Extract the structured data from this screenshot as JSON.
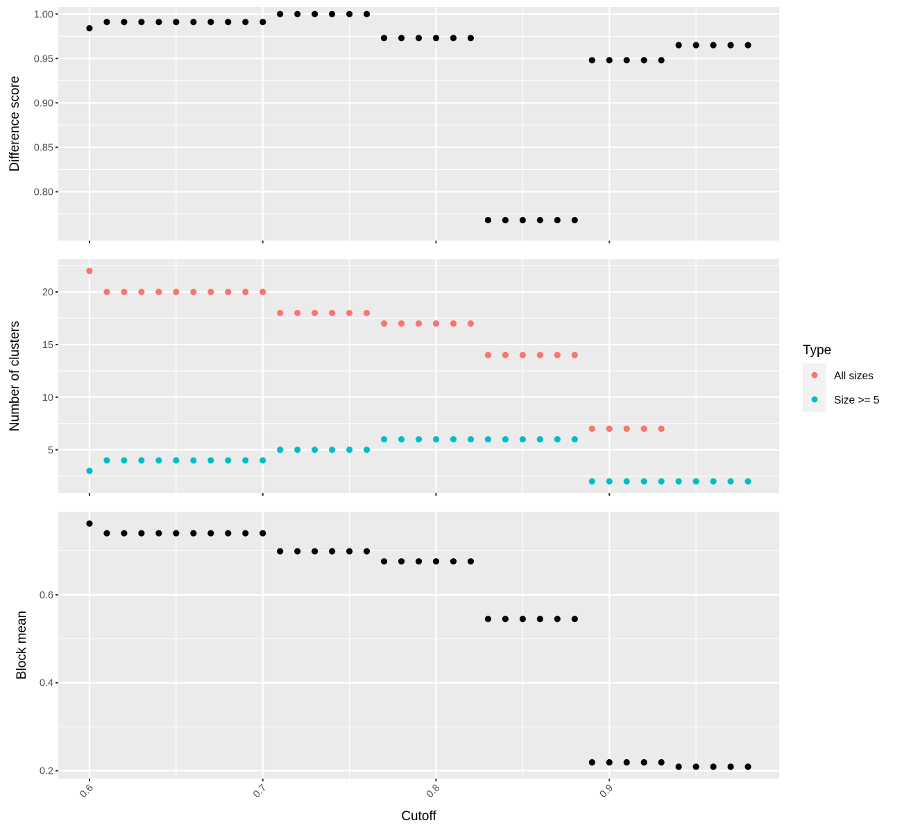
{
  "chart_data": [
    {
      "type": "scatter",
      "ylabel": "Difference score",
      "ylim": [
        0.745,
        1.008
      ],
      "yticks": [
        "0.80",
        "0.85",
        "0.90",
        "0.95",
        "1.00"
      ],
      "grid": true,
      "series": [
        {
          "color": "#000000",
          "x": [
            0.6,
            0.61,
            0.62,
            0.63,
            0.64,
            0.65,
            0.66,
            0.67,
            0.68,
            0.69,
            0.7,
            0.71,
            0.72,
            0.73,
            0.74,
            0.75,
            0.76,
            0.77,
            0.78,
            0.79,
            0.8,
            0.81,
            0.82,
            0.83,
            0.84,
            0.85,
            0.86,
            0.87,
            0.88,
            0.89,
            0.9,
            0.91,
            0.92,
            0.93,
            0.94,
            0.95,
            0.96,
            0.97,
            0.98
          ],
          "y": [
            0.984,
            0.991,
            0.991,
            0.991,
            0.991,
            0.991,
            0.991,
            0.991,
            0.991,
            0.991,
            0.991,
            1.0,
            1.0,
            1.0,
            1.0,
            1.0,
            1.0,
            0.973,
            0.973,
            0.973,
            0.973,
            0.973,
            0.973,
            0.768,
            0.768,
            0.768,
            0.768,
            0.768,
            0.768,
            0.948,
            0.948,
            0.948,
            0.948,
            0.948,
            0.965,
            0.965,
            0.965,
            0.965,
            0.965
          ]
        }
      ]
    },
    {
      "type": "scatter",
      "ylabel": "Number of clusters",
      "ylim": [
        0.9,
        23.1
      ],
      "yticks": [
        "5",
        "10",
        "15",
        "20"
      ],
      "grid": true,
      "legend": {
        "title": "Type",
        "position": "right"
      },
      "series": [
        {
          "name": "All sizes",
          "color": "#f8766d",
          "x": [
            0.6,
            0.61,
            0.62,
            0.63,
            0.64,
            0.65,
            0.66,
            0.67,
            0.68,
            0.69,
            0.7,
            0.71,
            0.72,
            0.73,
            0.74,
            0.75,
            0.76,
            0.77,
            0.78,
            0.79,
            0.8,
            0.81,
            0.82,
            0.83,
            0.84,
            0.85,
            0.86,
            0.87,
            0.88,
            0.89,
            0.9,
            0.91,
            0.92,
            0.93
          ],
          "y": [
            22,
            20,
            20,
            20,
            20,
            20,
            20,
            20,
            20,
            20,
            20,
            18,
            18,
            18,
            18,
            18,
            18,
            17,
            17,
            17,
            17,
            17,
            17,
            14,
            14,
            14,
            14,
            14,
            14,
            7,
            7,
            7,
            7,
            7
          ]
        },
        {
          "name": "Size >= 5",
          "color": "#00bfc4",
          "x": [
            0.6,
            0.61,
            0.62,
            0.63,
            0.64,
            0.65,
            0.66,
            0.67,
            0.68,
            0.69,
            0.7,
            0.71,
            0.72,
            0.73,
            0.74,
            0.75,
            0.76,
            0.77,
            0.78,
            0.79,
            0.8,
            0.81,
            0.82,
            0.83,
            0.84,
            0.85,
            0.86,
            0.87,
            0.88,
            0.89,
            0.9,
            0.91,
            0.92,
            0.93,
            0.94,
            0.95,
            0.96,
            0.97,
            0.98
          ],
          "y": [
            3,
            4,
            4,
            4,
            4,
            4,
            4,
            4,
            4,
            4,
            4,
            5,
            5,
            5,
            5,
            5,
            5,
            6,
            6,
            6,
            6,
            6,
            6,
            6,
            6,
            6,
            6,
            6,
            6,
            2,
            2,
            2,
            2,
            2,
            2,
            2,
            2,
            2,
            2
          ]
        }
      ]
    },
    {
      "type": "scatter",
      "ylabel": "Block mean",
      "xlabel": "Cutoff",
      "ylim": [
        0.182,
        0.789
      ],
      "yticks": [
        "0.2",
        "0.4",
        "0.6"
      ],
      "grid": true,
      "series": [
        {
          "color": "#000000",
          "x": [
            0.6,
            0.61,
            0.62,
            0.63,
            0.64,
            0.65,
            0.66,
            0.67,
            0.68,
            0.69,
            0.7,
            0.71,
            0.72,
            0.73,
            0.74,
            0.75,
            0.76,
            0.77,
            0.78,
            0.79,
            0.8,
            0.81,
            0.82,
            0.83,
            0.84,
            0.85,
            0.86,
            0.87,
            0.88,
            0.89,
            0.9,
            0.91,
            0.92,
            0.93,
            0.94,
            0.95,
            0.96,
            0.97,
            0.98
          ],
          "y": [
            0.762,
            0.74,
            0.74,
            0.74,
            0.74,
            0.74,
            0.74,
            0.74,
            0.74,
            0.74,
            0.74,
            0.699,
            0.699,
            0.699,
            0.699,
            0.699,
            0.699,
            0.676,
            0.676,
            0.676,
            0.676,
            0.676,
            0.676,
            0.545,
            0.545,
            0.545,
            0.545,
            0.545,
            0.545,
            0.219,
            0.219,
            0.219,
            0.219,
            0.219,
            0.209,
            0.209,
            0.209,
            0.209,
            0.209
          ]
        }
      ]
    }
  ],
  "x_axis": {
    "label": "Cutoff",
    "xlim": [
      0.582,
      0.998
    ],
    "ticks": [
      "0.6",
      "0.7",
      "0.8",
      "0.9"
    ]
  }
}
